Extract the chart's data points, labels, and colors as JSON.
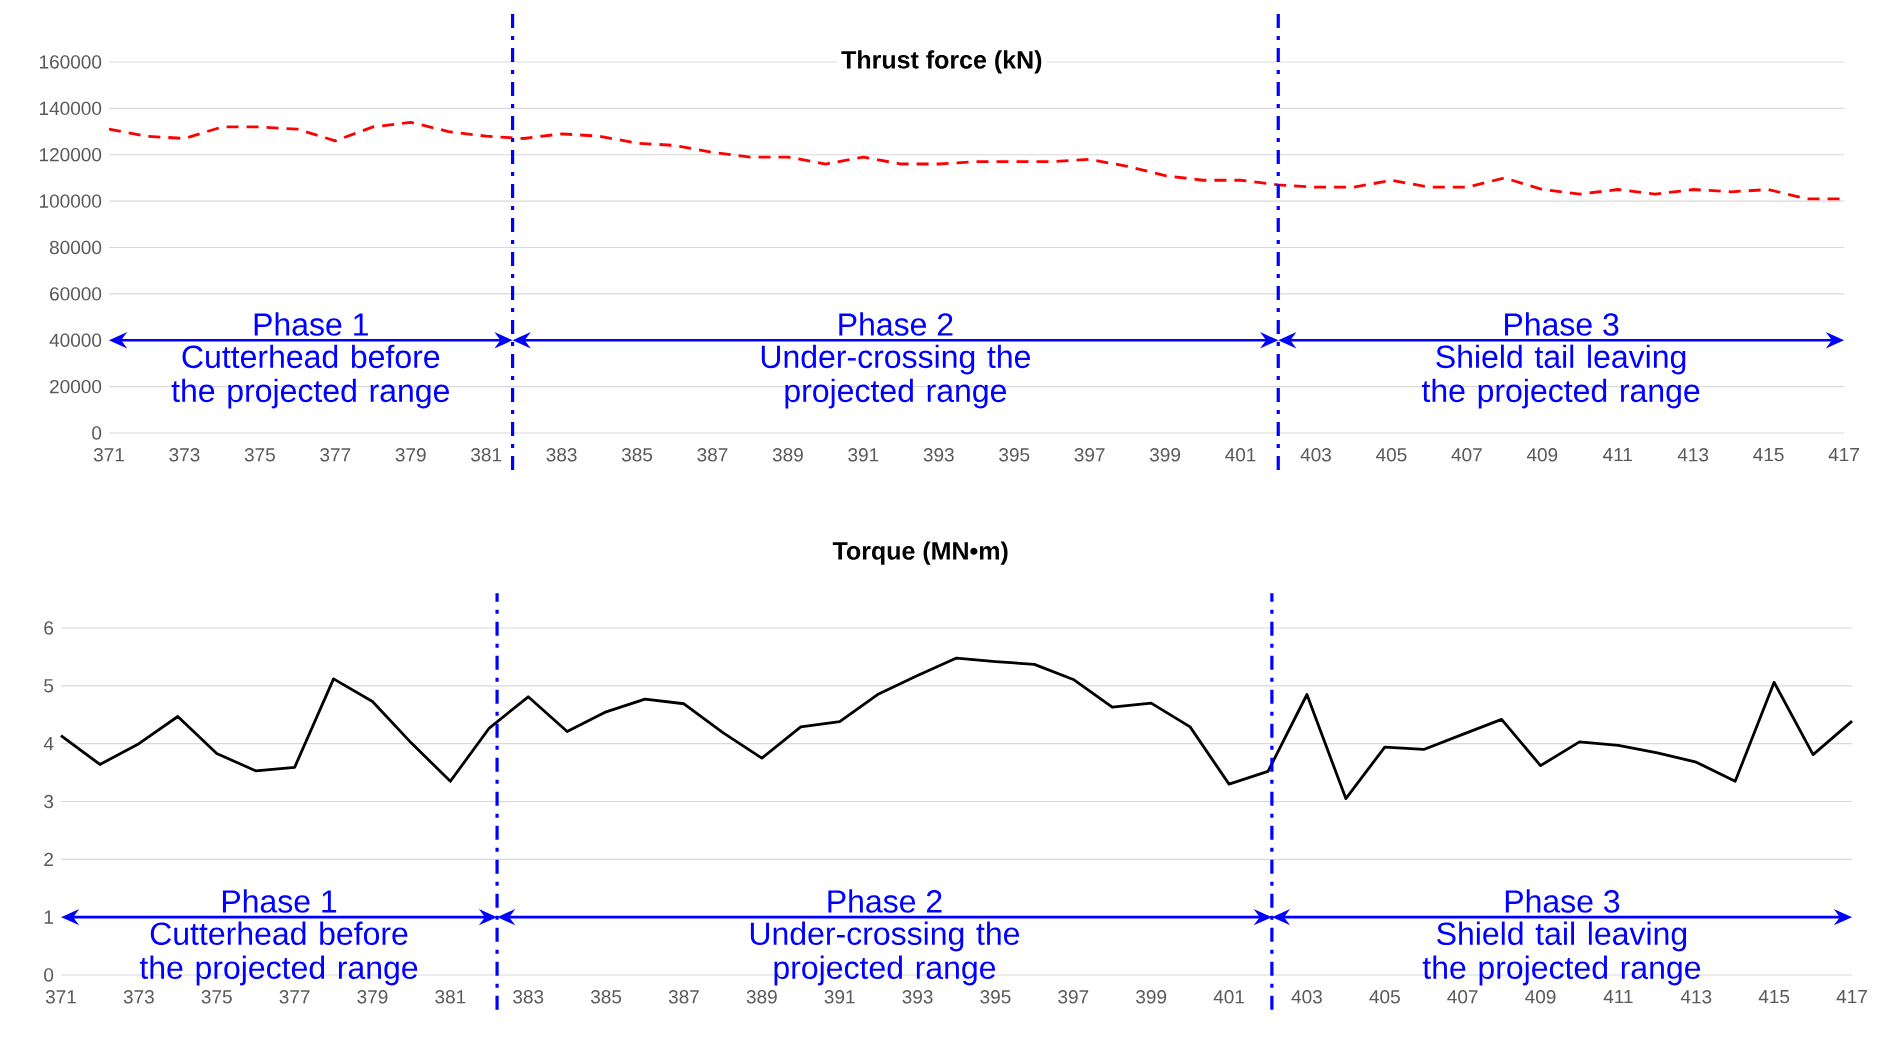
{
  "chart_data": [
    {
      "type": "line",
      "title": "Thrust force (kN)",
      "x": [
        371,
        372,
        373,
        374,
        375,
        376,
        377,
        378,
        379,
        380,
        381,
        382,
        383,
        384,
        385,
        386,
        387,
        388,
        389,
        390,
        391,
        392,
        393,
        394,
        395,
        396,
        397,
        398,
        399,
        400,
        401,
        402,
        403,
        404,
        405,
        406,
        407,
        408,
        409,
        410,
        411,
        412,
        413,
        414,
        415,
        416,
        417
      ],
      "series": [
        {
          "color": "#ff0000",
          "line_style": "dashed",
          "values": [
            131000,
            128000,
            127000,
            132000,
            132000,
            131000,
            126000,
            132000,
            134000,
            130000,
            128000,
            127000,
            129000,
            128000,
            125000,
            124000,
            121000,
            119000,
            119000,
            116000,
            119000,
            116000,
            116000,
            117000,
            117000,
            117000,
            118000,
            115000,
            111000,
            109000,
            109000,
            107000,
            106000,
            106000,
            109000,
            106000,
            106000,
            110000,
            105000,
            103000,
            105000,
            103000,
            105000,
            104000,
            105000,
            101000,
            101000
          ]
        }
      ],
      "xlim": [
        371,
        417
      ],
      "ylim": [
        0,
        160000
      ],
      "xticks": [
        371,
        373,
        375,
        377,
        379,
        381,
        383,
        385,
        387,
        389,
        391,
        393,
        395,
        397,
        399,
        401,
        403,
        405,
        407,
        409,
        411,
        413,
        415,
        417
      ],
      "yticks": [
        0,
        20000,
        40000,
        60000,
        80000,
        100000,
        120000,
        140000,
        160000
      ],
      "grid": "y",
      "ref_lines": [
        {
          "axis": "x",
          "value": 381.7,
          "color": "#0000ff",
          "line_style": "dashdot"
        },
        {
          "axis": "x",
          "value": 402.0,
          "color": "#0000ff",
          "line_style": "dashdot"
        }
      ],
      "annotations": [
        "Phase 1",
        "Cutterhead before the projected range",
        "Phase 2",
        "Under-crossing the projected range",
        "Phase 3",
        "Shield tail leaving the projected range"
      ]
    },
    {
      "type": "line",
      "title": "Torque (MN•m)",
      "x": [
        371,
        372,
        373,
        374,
        375,
        376,
        377,
        378,
        379,
        380,
        381,
        382,
        383,
        384,
        385,
        386,
        387,
        388,
        389,
        390,
        391,
        392,
        393,
        394,
        395,
        396,
        397,
        398,
        399,
        400,
        401,
        402,
        403,
        404,
        405,
        406,
        407,
        408,
        409,
        410,
        411,
        412,
        413,
        414,
        415,
        416,
        417
      ],
      "series": [
        {
          "color": "#000000",
          "line_style": "solid",
          "values": [
            4.14,
            3.64,
            4.0,
            4.47,
            3.83,
            3.53,
            3.59,
            5.12,
            4.73,
            4.01,
            3.35,
            4.27,
            4.81,
            4.21,
            4.55,
            4.77,
            4.69,
            4.19,
            3.75,
            4.29,
            4.38,
            4.86,
            5.18,
            5.48,
            5.42,
            5.37,
            5.11,
            4.63,
            4.7,
            4.29,
            3.3,
            3.52,
            4.85,
            3.05,
            3.94,
            3.9,
            4.16,
            4.42,
            3.62,
            4.03,
            3.97,
            3.84,
            3.68,
            3.35,
            5.06,
            3.81,
            4.39
          ]
        }
      ],
      "xlim": [
        371,
        417
      ],
      "ylim": [
        0,
        6
      ],
      "xticks": [
        371,
        373,
        375,
        377,
        379,
        381,
        383,
        385,
        387,
        389,
        391,
        393,
        395,
        397,
        399,
        401,
        403,
        405,
        407,
        409,
        411,
        413,
        415,
        417
      ],
      "yticks": [
        0,
        1,
        2,
        3,
        4,
        5,
        6
      ],
      "grid": "y",
      "ref_lines": [
        {
          "axis": "x",
          "value": 382.2,
          "color": "#0000ff",
          "line_style": "dashdot"
        },
        {
          "axis": "x",
          "value": 402.1,
          "color": "#0000ff",
          "line_style": "dashdot"
        }
      ],
      "annotations": [
        "Phase 1",
        "Cutterhead before the projected range",
        "Phase 2",
        "Under-crossing the projected range",
        "Phase 3",
        "Shield tail leaving the projected range"
      ]
    }
  ]
}
